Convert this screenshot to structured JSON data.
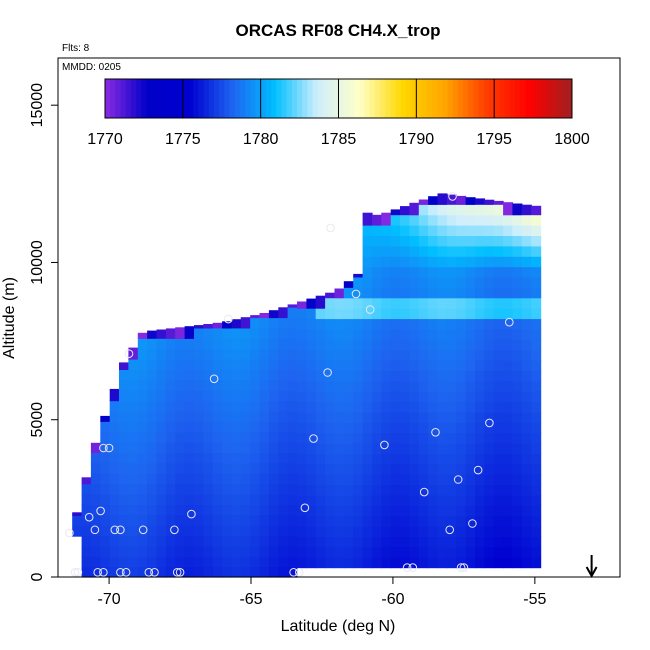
{
  "chart_data": {
    "type": "heatmap",
    "title": "ORCAS RF08 CH4.X_trop",
    "annotations": [
      "Flts: 8",
      "MMDD: 0205"
    ],
    "xlabel": "Latitude (deg N)",
    "ylabel": "Altitude (m)",
    "xlim": [
      -71.8,
      -52.0
    ],
    "ylim": [
      0,
      16500
    ],
    "xticks": [
      -70,
      -65,
      -60,
      -55
    ],
    "yticks": [
      0,
      5000,
      10000,
      15000
    ],
    "colorbar": {
      "range": [
        1770,
        1800
      ],
      "ticks": [
        1770,
        1775,
        1780,
        1785,
        1790,
        1795,
        1800
      ],
      "colors": [
        "#8a2be2",
        "#0000c8",
        "#0000d0",
        "#1e64f0",
        "#00bfff",
        "#cfeefc",
        "#ffffc8",
        "#ffd700",
        "#ffa500",
        "#ff3c00",
        "#ff0000",
        "#a02020"
      ]
    },
    "curtain_boundary": {
      "lat_range": [
        -71.3,
        -55.0
      ],
      "top_altitude_profile": [
        [
          -71.3,
          1500
        ],
        [
          -70.5,
          4200
        ],
        [
          -69.5,
          6800
        ],
        [
          -68.8,
          7800
        ],
        [
          -66.0,
          8100
        ],
        [
          -64.5,
          8400
        ],
        [
          -62.0,
          9100
        ],
        [
          -61.0,
          9800
        ],
        [
          -62.5,
          11000
        ],
        [
          -62.0,
          11700
        ],
        [
          -60.5,
          11500
        ],
        [
          -58.3,
          12200
        ],
        [
          -55.0,
          11800
        ]
      ],
      "bottom_altitude": 300
    },
    "flight_track_points": [
      {
        "lat": -71.2,
        "alt": 150
      },
      {
        "lat": -71.1,
        "alt": 150
      },
      {
        "lat": -70.4,
        "alt": 150
      },
      {
        "lat": -70.2,
        "alt": 150
      },
      {
        "lat": -69.6,
        "alt": 150
      },
      {
        "lat": -69.4,
        "alt": 150
      },
      {
        "lat": -68.6,
        "alt": 150
      },
      {
        "lat": -68.4,
        "alt": 150
      },
      {
        "lat": -67.6,
        "alt": 150
      },
      {
        "lat": -67.5,
        "alt": 150
      },
      {
        "lat": -63.5,
        "alt": 150
      },
      {
        "lat": -63.3,
        "alt": 150
      },
      {
        "lat": -59.5,
        "alt": 300
      },
      {
        "lat": -59.3,
        "alt": 300
      },
      {
        "lat": -57.6,
        "alt": 300
      },
      {
        "lat": -57.5,
        "alt": 300
      },
      {
        "lat": -71.4,
        "alt": 1400
      },
      {
        "lat": -70.7,
        "alt": 1900
      },
      {
        "lat": -70.5,
        "alt": 1500
      },
      {
        "lat": -70.3,
        "alt": 2100
      },
      {
        "lat": -69.8,
        "alt": 1500
      },
      {
        "lat": -69.6,
        "alt": 1500
      },
      {
        "lat": -68.8,
        "alt": 1500
      },
      {
        "lat": -67.7,
        "alt": 1500
      },
      {
        "lat": -67.1,
        "alt": 2000
      },
      {
        "lat": -63.1,
        "alt": 2200
      },
      {
        "lat": -58.9,
        "alt": 2700
      },
      {
        "lat": -58.0,
        "alt": 1500
      },
      {
        "lat": -57.2,
        "alt": 1700
      },
      {
        "lat": -70.2,
        "alt": 4100
      },
      {
        "lat": -70.0,
        "alt": 4100
      },
      {
        "lat": -62.8,
        "alt": 4400
      },
      {
        "lat": -60.3,
        "alt": 4200
      },
      {
        "lat": -58.5,
        "alt": 4600
      },
      {
        "lat": -57.7,
        "alt": 3100
      },
      {
        "lat": -57.0,
        "alt": 3400
      },
      {
        "lat": -56.6,
        "alt": 4900
      },
      {
        "lat": -69.3,
        "alt": 7100
      },
      {
        "lat": -66.3,
        "alt": 6300
      },
      {
        "lat": -62.3,
        "alt": 6500
      },
      {
        "lat": -65.8,
        "alt": 8200
      },
      {
        "lat": -61.3,
        "alt": 9000
      },
      {
        "lat": -60.8,
        "alt": 8500
      },
      {
        "lat": -55.9,
        "alt": 8100
      },
      {
        "lat": -62.2,
        "alt": 11100
      },
      {
        "lat": -57.9,
        "alt": 12100
      }
    ],
    "grid": false,
    "legend": "colorbar top",
    "arrow": {
      "lat": -53.0,
      "direction": "down"
    }
  }
}
